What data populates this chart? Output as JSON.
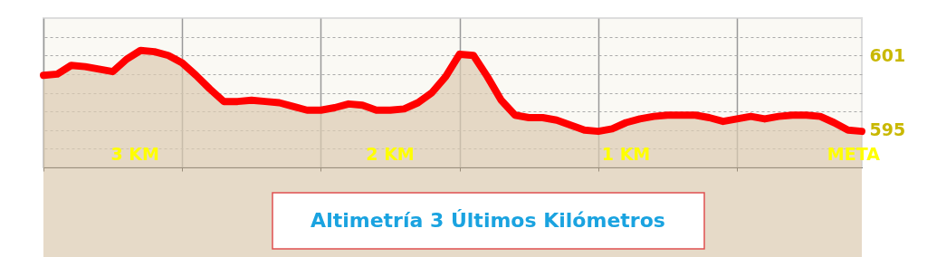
{
  "chart_data": {
    "type": "area",
    "title": "Altimetría 3 Últimos Kilómetros",
    "categories": [
      null,
      null,
      null,
      null,
      null,
      null,
      null,
      null,
      null,
      null,
      null,
      null,
      null,
      null,
      null,
      null,
      null,
      null,
      null,
      null,
      null,
      null,
      null,
      null,
      null,
      null,
      null,
      null,
      null,
      null,
      null,
      null,
      null,
      null,
      null,
      null,
      null,
      null,
      null,
      null,
      null,
      null,
      null,
      null,
      null,
      null,
      null,
      null,
      null,
      null,
      null,
      null,
      null,
      null,
      null,
      null,
      null,
      null,
      null,
      null
    ],
    "series": [
      {
        "color": "#ff0000",
        "values": [
          599.4,
          599.5,
          600.2,
          600.1,
          599.9,
          599.7,
          600.7,
          601.4,
          601.3,
          601.0,
          600.4,
          599.4,
          598.3,
          597.3,
          597.3,
          597.4,
          597.3,
          597.2,
          596.9,
          596.6,
          596.6,
          596.8,
          597.1,
          597.0,
          596.6,
          596.6,
          596.7,
          597.2,
          598.0,
          599.3,
          601.1,
          601.0,
          599.3,
          597.4,
          596.2,
          596.0,
          596.0,
          595.8,
          595.4,
          595.0,
          594.9,
          595.1,
          595.6,
          595.9,
          596.1,
          596.2,
          596.2,
          596.2,
          596.0,
          595.7,
          595.9,
          596.1,
          595.9,
          596.1,
          596.2,
          596.2,
          596.1,
          595.6,
          595.0,
          594.9
        ]
      }
    ],
    "ylim": [
      592,
      604
    ],
    "yticks": [
      {
        "value": 593.5,
        "label": null
      },
      595,
      {
        "value": 596.5,
        "label": null
      },
      {
        "value": 598,
        "label": null
      },
      {
        "value": 599.5,
        "label": null
      },
      601,
      {
        "value": 602.5,
        "label": null
      }
    ],
    "grid": true,
    "tick_labels": "y",
    "annotations": [
      "3 KM",
      "2 KM",
      "1 KM",
      "META"
    ]
  }
}
